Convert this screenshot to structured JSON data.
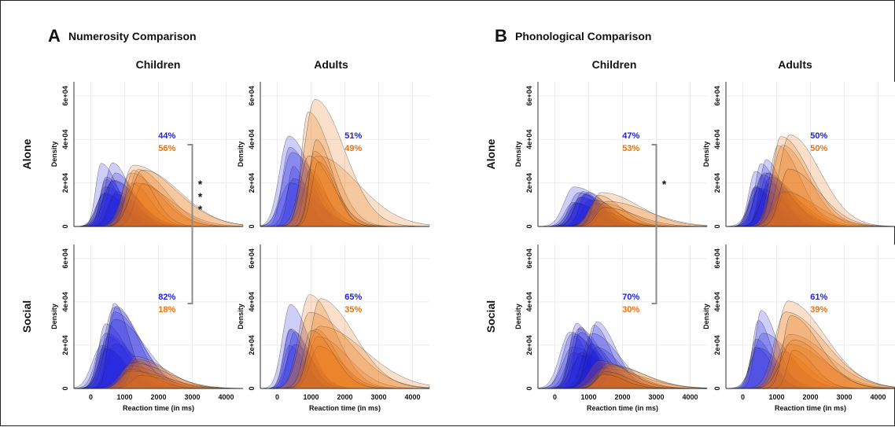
{
  "colors": {
    "blue": "#2222dd",
    "orange": "#e8720c",
    "mix": "#8a3a8a",
    "bracket": "#8c8c8c",
    "grid": "#ececec"
  },
  "figure": {
    "ylabel": "Density",
    "xlabel": "Reaction time (in ms)",
    "row_labels": [
      "Alone",
      "Social"
    ],
    "col_labels": [
      "Children",
      "Adults"
    ]
  },
  "panels": [
    {
      "letter": "A",
      "title": "Numerosity Comparison",
      "x_ticks": [
        "0",
        "1000",
        "2000",
        "3000",
        "4000"
      ],
      "y_ticks": [
        "0",
        "2e+04",
        "4e+04",
        "6e+04"
      ],
      "significance": "* * *"
    },
    {
      "letter": "B",
      "title": "Phonological Comparison",
      "x_ticks": [
        "0",
        "1000",
        "2000",
        "3000",
        "4000"
      ],
      "y_ticks": [
        "0",
        "2e+04",
        "4e+04",
        "6e+04"
      ],
      "significance": "*"
    }
  ],
  "chart_data": [
    {
      "type": "area",
      "title": "Numerosity Comparison – Children – Alone",
      "xlabel": "Reaction time (in ms)",
      "ylabel": "Density",
      "xlim": [
        -500,
        4500
      ],
      "ylim": [
        0,
        65000
      ],
      "series": [
        {
          "name": "44%",
          "peaks_ms": [
            400,
            750
          ],
          "peak_density": 30000,
          "share": "44%"
        },
        {
          "name": "56%",
          "peaks_ms": [
            1350
          ],
          "peak_density": 31000,
          "share": "56%"
        }
      ]
    },
    {
      "type": "area",
      "title": "Numerosity Comparison – Adults – Alone",
      "xlabel": "Reaction time (in ms)",
      "ylabel": "Density",
      "xlim": [
        -500,
        4500
      ],
      "ylim": [
        0,
        65000
      ],
      "series": [
        {
          "name": "51%",
          "peaks_ms": [
            450
          ],
          "peak_density": 44000,
          "share": "51%"
        },
        {
          "name": "49%",
          "peaks_ms": [
            1100
          ],
          "peak_density": 65000,
          "share": "49%"
        }
      ]
    },
    {
      "type": "area",
      "title": "Numerosity Comparison – Children – Social",
      "xlabel": "Reaction time (in ms)",
      "ylabel": "Density",
      "xlim": [
        -500,
        4500
      ],
      "ylim": [
        0,
        65000
      ],
      "series": [
        {
          "name": "82%",
          "peaks_ms": [
            450,
            700
          ],
          "peak_density": 40000,
          "share": "82%"
        },
        {
          "name": "18%",
          "peaks_ms": [
            1300
          ],
          "peak_density": 16000,
          "share": "18%"
        }
      ]
    },
    {
      "type": "area",
      "title": "Numerosity Comparison – Adults – Social",
      "xlabel": "Reaction time (in ms)",
      "ylabel": "Density",
      "xlim": [
        -500,
        4500
      ],
      "ylim": [
        0,
        65000
      ],
      "series": [
        {
          "name": "65%",
          "peaks_ms": [
            400
          ],
          "peak_density": 41000,
          "share": "65%"
        },
        {
          "name": "35%",
          "peaks_ms": [
            1100
          ],
          "peak_density": 48000,
          "share": "35%"
        }
      ]
    },
    {
      "type": "area",
      "title": "Phonological Comparison – Children – Alone",
      "xlabel": "Reaction time (in ms)",
      "ylabel": "Density",
      "xlim": [
        -500,
        4500
      ],
      "ylim": [
        0,
        65000
      ],
      "series": [
        {
          "name": "47%",
          "peaks_ms": [
            600,
            900
          ],
          "peak_density": 21000,
          "share": "47%"
        },
        {
          "name": "53%",
          "peaks_ms": [
            1400
          ],
          "peak_density": 16000,
          "share": "53%"
        }
      ]
    },
    {
      "type": "area",
      "title": "Phonological Comparison – Adults – Alone",
      "xlabel": "Reaction time (in ms)",
      "ylabel": "Density",
      "xlim": [
        -500,
        4500
      ],
      "ylim": [
        0,
        65000
      ],
      "series": [
        {
          "name": "50%",
          "peaks_ms": [
            500,
            700
          ],
          "peak_density": 35000,
          "share": "50%"
        },
        {
          "name": "50%",
          "peaks_ms": [
            1200
          ],
          "peak_density": 44000,
          "share": "50%"
        }
      ]
    },
    {
      "type": "area",
      "title": "Phonological Comparison – Children – Social",
      "xlabel": "Reaction time (in ms)",
      "ylabel": "Density",
      "xlim": [
        -500,
        4500
      ],
      "ylim": [
        0,
        65000
      ],
      "series": [
        {
          "name": "70%",
          "peaks_ms": [
            600,
            850,
            1100
          ],
          "peak_density": 33000,
          "share": "70%"
        },
        {
          "name": "30%",
          "peaks_ms": [
            1500
          ],
          "peak_density": 13000,
          "share": "30%"
        }
      ]
    },
    {
      "type": "area",
      "title": "Phonological Comparison – Adults – Social",
      "xlabel": "Reaction time (in ms)",
      "ylabel": "Density",
      "xlim": [
        -500,
        4500
      ],
      "ylim": [
        0,
        65000
      ],
      "series": [
        {
          "name": "61%",
          "peaks_ms": [
            500
          ],
          "peak_density": 38000,
          "share": "61%"
        },
        {
          "name": "39%",
          "peaks_ms": [
            1300
          ],
          "peak_density": 43000,
          "share": "39%"
        }
      ]
    }
  ]
}
